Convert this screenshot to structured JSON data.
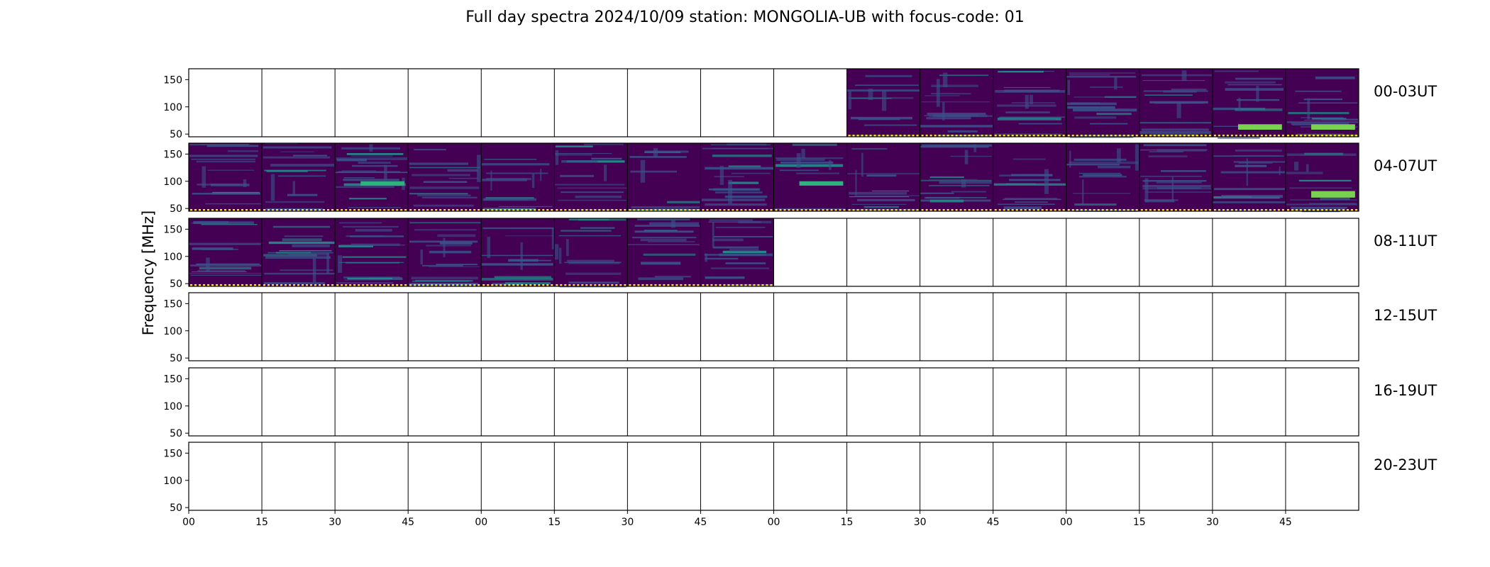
{
  "title": "Full day spectra 2024/10/09 station: MONGOLIA-UB with focus-code: 01",
  "chart_data": {
    "type": "heatmap",
    "title": "Full day spectra 2024/10/09 station: MONGOLIA-UB with focus-code: 01",
    "ylabel": "Frequency [MHz]",
    "xlabel": "",
    "ylim": [
      45,
      170
    ],
    "y_ticks": [
      50,
      100,
      150
    ],
    "x_ticks": [
      "00",
      "15",
      "30",
      "45",
      "00",
      "15",
      "30",
      "45",
      "00",
      "15",
      "30",
      "45",
      "00",
      "15",
      "30",
      "45"
    ],
    "rows": [
      "00-03UT",
      "04-07UT",
      "08-11UT",
      "12-15UT",
      "16-19UT",
      "20-23UT"
    ],
    "panels_per_row": 16,
    "panel_minutes": 15,
    "colormap": "viridis",
    "colors": [
      "#440154",
      "#3b528b",
      "#21918c",
      "#5ec962",
      "#fde725"
    ],
    "data_panels": [
      {
        "row": 0,
        "from_panel": 9,
        "to_panel": 15
      },
      {
        "row": 1,
        "from_panel": 0,
        "to_panel": 15
      },
      {
        "row": 2,
        "from_panel": 0,
        "to_panel": 7
      }
    ],
    "bright_bands": [
      {
        "row": 0,
        "panel": 14,
        "freq_range": [
          58,
          68
        ],
        "color": "#7ad151"
      },
      {
        "row": 0,
        "panel": 15,
        "freq_range": [
          58,
          68
        ],
        "color": "#7ad151"
      },
      {
        "row": 1,
        "panel": 2,
        "freq_range": [
          92,
          100
        ],
        "color": "#2db27d"
      },
      {
        "row": 1,
        "panel": 8,
        "freq_range": [
          92,
          100
        ],
        "color": "#2db27d"
      },
      {
        "row": 1,
        "panel": 15,
        "freq_range": [
          70,
          82
        ],
        "color": "#7ad151"
      }
    ]
  }
}
